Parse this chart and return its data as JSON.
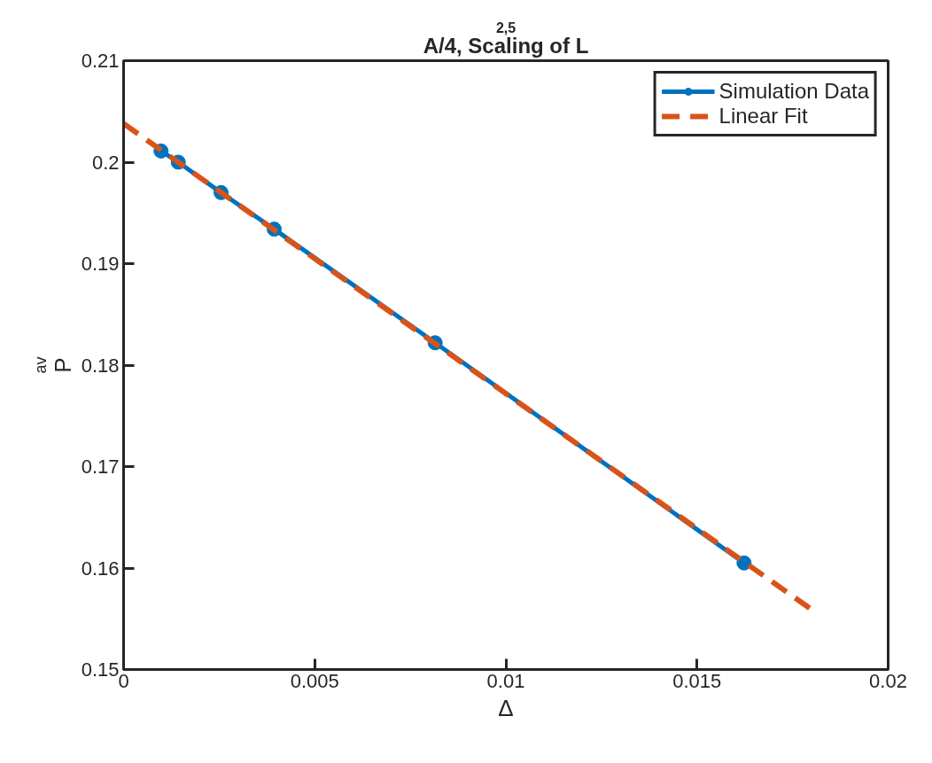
{
  "chart_data": {
    "type": "line",
    "title": "A/4, Scaling of L$^{2,5}$",
    "xlabel": "Δ",
    "ylabel": "P$_{av}$",
    "xlim": [
      0,
      0.02
    ],
    "xticks": [
      0,
      0.005,
      0.01,
      0.015,
      0.02
    ],
    "ylim": [
      0.15,
      0.21
    ],
    "yticks": [
      0.15,
      0.16,
      0.17,
      0.18,
      0.19,
      0.2,
      0.21
    ],
    "grid": false,
    "legend": "top right",
    "series": [
      {
        "name": "Simulation Data",
        "type": "line",
        "marker": "circle",
        "line_style": "solid",
        "color": "#0072bd",
        "x": [
          0.00098,
          0.00143,
          0.00255,
          0.00394,
          0.00815,
          0.01623
        ],
        "values": [
          0.2011,
          0.2,
          0.197,
          0.1934,
          0.1822,
          0.1605
        ]
      },
      {
        "name": "Linear Fit",
        "type": "line",
        "marker": "none",
        "line_style": "dashed",
        "color": "#d95319",
        "x": [
          0,
          0.018
        ],
        "values": [
          0.2038,
          0.1559
        ]
      }
    ]
  }
}
